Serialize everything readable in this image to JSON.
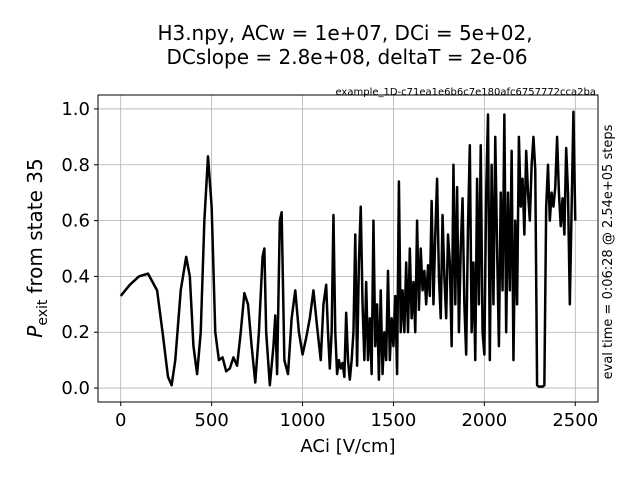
{
  "chart_data": {
    "type": "line",
    "title": [
      "H3.npy, ACw = 1e+07,  DCi = 5e+02,",
      "DCslope = 2.8e+08,  deltaT = 2e-06"
    ],
    "annotation": "example_1D-c71ea1e6b6c7e180afc6757772cca2ba",
    "right_label": "eval time = 0:06:28 @ 2.54e+05 steps",
    "xlabel": "ACi [V/cm]",
    "ylabel": {
      "symbol": "P",
      "subscript": "exit",
      "text": "from state 35"
    },
    "xlim": [
      -125,
      2625
    ],
    "ylim": [
      -0.05,
      1.05
    ],
    "xticks": [
      0,
      500,
      1000,
      1500,
      2000,
      2500
    ],
    "yticks": [
      {
        "value": 0,
        "label": "0.0"
      },
      0.2,
      0.4,
      0.6,
      0.8,
      {
        "value": 1,
        "label": "1.0"
      }
    ],
    "grid": true,
    "series": [
      {
        "color": "#000000",
        "x": [
          0,
          50,
          100,
          150,
          200,
          230,
          260,
          280,
          300,
          330,
          360,
          380,
          400,
          420,
          440,
          460,
          480,
          500,
          520,
          540,
          560,
          580,
          600,
          620,
          640,
          660,
          680,
          700,
          720,
          740,
          760,
          780,
          790,
          800,
          820,
          840,
          850,
          860,
          875,
          885,
          900,
          920,
          940,
          960,
          980,
          1000,
          1020,
          1040,
          1060,
          1080,
          1100,
          1115,
          1130,
          1140,
          1150,
          1160,
          1170,
          1180,
          1190,
          1200,
          1210,
          1220,
          1230,
          1240,
          1250,
          1260,
          1270,
          1280,
          1290,
          1300,
          1310,
          1320,
          1330,
          1340,
          1350,
          1360,
          1370,
          1380,
          1390,
          1400,
          1410,
          1420,
          1430,
          1440,
          1450,
          1460,
          1470,
          1480,
          1490,
          1500,
          1510,
          1520,
          1530,
          1540,
          1550,
          1560,
          1570,
          1580,
          1590,
          1600,
          1610,
          1620,
          1630,
          1640,
          1650,
          1660,
          1670,
          1680,
          1690,
          1700,
          1710,
          1720,
          1730,
          1740,
          1750,
          1760,
          1770,
          1780,
          1790,
          1800,
          1810,
          1820,
          1830,
          1840,
          1850,
          1860,
          1870,
          1880,
          1890,
          1900,
          1910,
          1920,
          1930,
          1940,
          1950,
          1960,
          1970,
          1980,
          1990,
          2000,
          2010,
          2020,
          2030,
          2040,
          2050,
          2060,
          2070,
          2080,
          2090,
          2100,
          2110,
          2120,
          2130,
          2140,
          2150,
          2160,
          2170,
          2180,
          2190,
          2200,
          2210,
          2220,
          2230,
          2240,
          2250,
          2260,
          2270,
          2280,
          2290,
          2300,
          2320,
          2330,
          2340,
          2350,
          2360,
          2370,
          2380,
          2390,
          2400,
          2410,
          2420,
          2430,
          2440,
          2450,
          2460,
          2470,
          2480,
          2490,
          2500
        ],
        "values": [
          0.33,
          0.37,
          0.4,
          0.41,
          0.35,
          0.2,
          0.04,
          0.01,
          0.1,
          0.35,
          0.47,
          0.4,
          0.15,
          0.05,
          0.2,
          0.6,
          0.83,
          0.65,
          0.2,
          0.1,
          0.11,
          0.06,
          0.07,
          0.11,
          0.08,
          0.2,
          0.34,
          0.3,
          0.15,
          0.02,
          0.2,
          0.47,
          0.5,
          0.2,
          0.01,
          0.15,
          0.26,
          0.05,
          0.6,
          0.63,
          0.1,
          0.05,
          0.25,
          0.35,
          0.2,
          0.12,
          0.18,
          0.25,
          0.35,
          0.22,
          0.1,
          0.3,
          0.37,
          0.2,
          0.07,
          0.2,
          0.62,
          0.2,
          0.05,
          0.1,
          0.07,
          0.09,
          0.04,
          0.27,
          0.1,
          0.03,
          0.1,
          0.2,
          0.55,
          0.08,
          0.45,
          0.65,
          0.3,
          0.1,
          0.38,
          0.1,
          0.25,
          0.05,
          0.6,
          0.15,
          0.3,
          0.03,
          0.35,
          0.05,
          0.2,
          0.1,
          0.42,
          0.1,
          0.25,
          0.15,
          0.33,
          0.05,
          0.74,
          0.2,
          0.35,
          0.2,
          0.45,
          0.2,
          0.5,
          0.25,
          0.38,
          0.2,
          0.6,
          0.28,
          0.5,
          0.35,
          0.42,
          0.3,
          0.44,
          0.33,
          0.67,
          0.3,
          0.55,
          0.75,
          0.4,
          0.25,
          0.62,
          0.4,
          0.25,
          0.55,
          0.45,
          0.15,
          0.8,
          0.3,
          0.72,
          0.2,
          0.5,
          0.68,
          0.3,
          0.12,
          0.58,
          0.87,
          0.2,
          0.45,
          0.1,
          0.75,
          0.3,
          0.87,
          0.2,
          0.12,
          0.7,
          0.98,
          0.1,
          0.8,
          0.3,
          0.9,
          0.5,
          0.15,
          0.7,
          0.35,
          0.98,
          0.2,
          0.7,
          0.35,
          0.85,
          0.1,
          0.6,
          0.3,
          0.9,
          0.65,
          0.75,
          0.55,
          0.85,
          0.7,
          0.6,
          0.8,
          0.9,
          0.78,
          0.01,
          0.005,
          0.005,
          0.01,
          0.65,
          0.8,
          0.6,
          0.7,
          0.65,
          0.72,
          0.9,
          0.7,
          0.58,
          0.68,
          0.55,
          0.86,
          0.7,
          0.3,
          0.65,
          0.99,
          0.6
        ]
      }
    ]
  }
}
